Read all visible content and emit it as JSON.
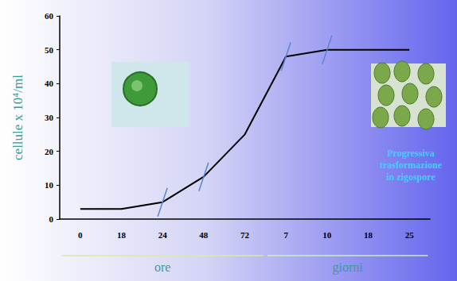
{
  "chart_data": {
    "type": "line",
    "categories": [
      "0",
      "18",
      "24",
      "48",
      "72",
      "7",
      "10",
      "18",
      "25"
    ],
    "values": [
      3,
      3,
      5,
      12.5,
      25,
      48,
      50,
      50,
      50
    ],
    "color": "#000000",
    "ylim": [
      0,
      60
    ],
    "yticks": [
      0,
      10,
      20,
      30,
      40,
      50,
      60
    ],
    "y_label": "cellule x 10⁴/ml",
    "grid": false,
    "x_groups": [
      {
        "label": "ore",
        "from": "0",
        "to": "72"
      },
      {
        "label": "giorni",
        "from": "7",
        "to": "25"
      }
    ],
    "phase_marks": [
      "24",
      "48",
      "7",
      "10"
    ],
    "annotations": [
      {
        "text": "Progressiva\ntrasformazione\nin zigospore"
      }
    ]
  }
}
